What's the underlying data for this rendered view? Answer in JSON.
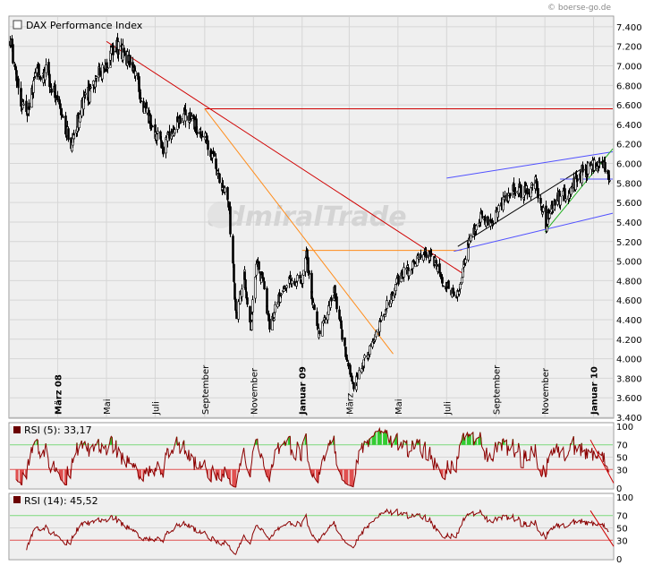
{
  "credit": "© boerse-go.de",
  "watermark": "admiralTrade",
  "colors": {
    "panel_bg": "#efefef",
    "grid": "#d6d6d6",
    "red_line": "#d00000",
    "orange_line": "#ff8c1a",
    "blue_channel": "#5050ff",
    "green_line": "#22b022",
    "rsi_line": "#8b0000",
    "rsi_over": "#33cc33",
    "rsi_under": "#e05050"
  },
  "chart_data": [
    {
      "type": "candlestick",
      "title": "DAX Performance Index",
      "ylim": [
        3400,
        7500
      ],
      "y_ticks": [
        3400,
        3600,
        3800,
        4000,
        4200,
        4400,
        4600,
        4800,
        5000,
        5200,
        5400,
        5600,
        5800,
        6000,
        6200,
        6400,
        6600,
        6800,
        7000,
        7200,
        7400
      ],
      "y_tick_labels": [
        "3.400",
        "3.600",
        "3.800",
        "4.000",
        "4.200",
        "4.400",
        "4.600",
        "4.800",
        "5.000",
        "5.200",
        "5.400",
        "5.600",
        "5.800",
        "6.000",
        "6.200",
        "6.400",
        "6.600",
        "6.800",
        "7.000",
        "7.200",
        "7.400"
      ],
      "x_range": [
        "2008-01-01",
        "2010-01-25"
      ],
      "x_ticks": [
        {
          "date": "2008-03-01",
          "label": "März 08",
          "bold": true
        },
        {
          "date": "2008-05-01",
          "label": "Mai",
          "bold": false
        },
        {
          "date": "2008-07-01",
          "label": "Juli",
          "bold": false
        },
        {
          "date": "2008-09-01",
          "label": "September",
          "bold": false
        },
        {
          "date": "2008-11-01",
          "label": "November",
          "bold": false
        },
        {
          "date": "2009-01-01",
          "label": "Januar 09",
          "bold": true
        },
        {
          "date": "2009-03-01",
          "label": "März",
          "bold": false
        },
        {
          "date": "2009-05-01",
          "label": "Mai",
          "bold": false
        },
        {
          "date": "2009-07-01",
          "label": "Juli",
          "bold": false
        },
        {
          "date": "2009-09-01",
          "label": "September",
          "bold": false
        },
        {
          "date": "2009-11-01",
          "label": "November",
          "bold": false
        },
        {
          "date": "2010-01-01",
          "label": "Januar 10",
          "bold": true
        }
      ],
      "price_path": [
        [
          "2008-01-01",
          7250
        ],
        [
          "2008-01-10",
          6800
        ],
        [
          "2008-01-21",
          6450
        ],
        [
          "2008-02-01",
          6900
        ],
        [
          "2008-02-15",
          6950
        ],
        [
          "2008-03-01",
          6600
        ],
        [
          "2008-03-17",
          6200
        ],
        [
          "2008-04-01",
          6600
        ],
        [
          "2008-04-20",
          6900
        ],
        [
          "2008-05-01",
          7050
        ],
        [
          "2008-05-15",
          7200
        ],
        [
          "2008-06-01",
          7000
        ],
        [
          "2008-06-20",
          6500
        ],
        [
          "2008-07-10",
          6150
        ],
        [
          "2008-07-25",
          6400
        ],
        [
          "2008-08-10",
          6500
        ],
        [
          "2008-08-25",
          6300
        ],
        [
          "2008-09-05",
          6200
        ],
        [
          "2008-09-20",
          5800
        ],
        [
          "2008-10-01",
          5600
        ],
        [
          "2008-10-10",
          4400
        ],
        [
          "2008-10-20",
          4900
        ],
        [
          "2008-10-28",
          4300
        ],
        [
          "2008-11-05",
          5000
        ],
        [
          "2008-11-15",
          4700
        ],
        [
          "2008-11-21",
          4300
        ],
        [
          "2008-12-01",
          4600
        ],
        [
          "2008-12-15",
          4800
        ],
        [
          "2008-12-31",
          4810
        ],
        [
          "2009-01-06",
          5050
        ],
        [
          "2009-01-20",
          4250
        ],
        [
          "2009-02-01",
          4450
        ],
        [
          "2009-02-10",
          4700
        ],
        [
          "2009-02-25",
          4000
        ],
        [
          "2009-03-06",
          3700
        ],
        [
          "2009-03-15",
          3900
        ],
        [
          "2009-04-01",
          4200
        ],
        [
          "2009-04-15",
          4500
        ],
        [
          "2009-05-05",
          4900
        ],
        [
          "2009-05-20",
          4950
        ],
        [
          "2009-06-01",
          5050
        ],
        [
          "2009-06-10",
          5100
        ],
        [
          "2009-06-25",
          4800
        ],
        [
          "2009-07-13",
          4600
        ],
        [
          "2009-07-28",
          5200
        ],
        [
          "2009-08-10",
          5450
        ],
        [
          "2009-08-25",
          5400
        ],
        [
          "2009-09-10",
          5600
        ],
        [
          "2009-09-25",
          5750
        ],
        [
          "2009-10-05",
          5700
        ],
        [
          "2009-10-20",
          5800
        ],
        [
          "2009-11-02",
          5400
        ],
        [
          "2009-11-15",
          5650
        ],
        [
          "2009-12-01",
          5700
        ],
        [
          "2009-12-15",
          5900
        ],
        [
          "2010-01-05",
          6000
        ],
        [
          "2010-01-12",
          6050
        ],
        [
          "2010-01-20",
          5850
        ]
      ],
      "trend_lines": [
        {
          "color": "red",
          "from": [
            "2008-05-01",
            7250
          ],
          "to": [
            "2009-07-20",
            4880
          ]
        },
        {
          "color": "red",
          "from": [
            "2008-09-01",
            6560
          ],
          "to": [
            "2010-01-25",
            6560
          ]
        },
        {
          "color": "orange",
          "from": [
            "2008-09-01",
            6560
          ],
          "to": [
            "2009-04-25",
            4050
          ]
        },
        {
          "color": "orange",
          "from": [
            "2009-01-01",
            5110
          ],
          "to": [
            "2009-07-20",
            5110
          ]
        },
        {
          "color": "blue",
          "from": [
            "2009-07-01",
            5850
          ],
          "to": [
            "2010-01-25",
            6120
          ]
        },
        {
          "color": "blue",
          "from": [
            "2009-07-10",
            5100
          ],
          "to": [
            "2010-01-25",
            5490
          ]
        },
        {
          "color": "black",
          "from": [
            "2009-07-15",
            5150
          ],
          "to": [
            "2009-12-20",
            5960
          ]
        },
        {
          "color": "green",
          "from": [
            "2009-11-01",
            5300
          ],
          "to": [
            "2010-01-25",
            6150
          ]
        },
        {
          "color": "blue",
          "from": [
            "2009-11-20",
            5840
          ],
          "to": [
            "2010-01-25",
            5840
          ]
        }
      ]
    },
    {
      "type": "line",
      "title": "RSI (5): 33,17",
      "ylim": [
        0,
        100
      ],
      "y_ticks": [
        0,
        30,
        50,
        70,
        100
      ],
      "overbought": 70,
      "oversold": 30,
      "last_value": 33.17
    },
    {
      "type": "line",
      "title": "RSI (14): 45,52",
      "ylim": [
        0,
        100
      ],
      "y_ticks": [
        0,
        30,
        50,
        70,
        100
      ],
      "overbought": 70,
      "oversold": 30,
      "last_value": 45.52
    }
  ]
}
